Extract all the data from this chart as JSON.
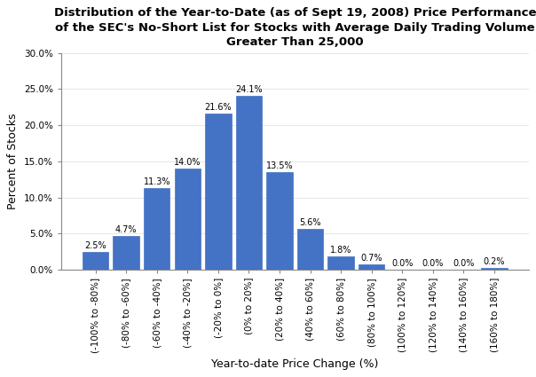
{
  "title_line1": "Distribution of the Year-to-Date (as of Sept 19, 2008) Price Performance",
  "title_line2": "of the SEC's No-Short List for Stocks with Average Daily Trading Volume",
  "title_line3": "Greater Than 25,000",
  "xlabel": "Year-to-date Price Change (%)",
  "ylabel": "Percent of Stocks",
  "categories": [
    "(-100% to -80%]",
    "(-80% to -60%]",
    "(-60% to -40%]",
    "(-40% to -20%]",
    "(-20% to 0%]",
    "(0% to 20%]",
    "(20% to 40%]",
    "(40% to 60%]",
    "(60% to 80%]",
    "(80% to 100%]",
    "(100% to 120%]",
    "(120% to 140%]",
    "(140% to 160%]",
    "(160% to 180%]"
  ],
  "values": [
    2.5,
    4.7,
    11.3,
    14.0,
    21.6,
    24.1,
    13.5,
    5.6,
    1.8,
    0.7,
    0.0,
    0.0,
    0.0,
    0.2
  ],
  "bar_color": "#4472C4",
  "ylim": [
    0,
    30.0
  ],
  "yticks": [
    0.0,
    5.0,
    10.0,
    15.0,
    20.0,
    25.0,
    30.0
  ],
  "title_fontsize": 9.5,
  "label_fontsize": 9,
  "tick_fontsize": 7.5,
  "bar_label_fontsize": 7.0,
  "bg_color": "#ffffff"
}
